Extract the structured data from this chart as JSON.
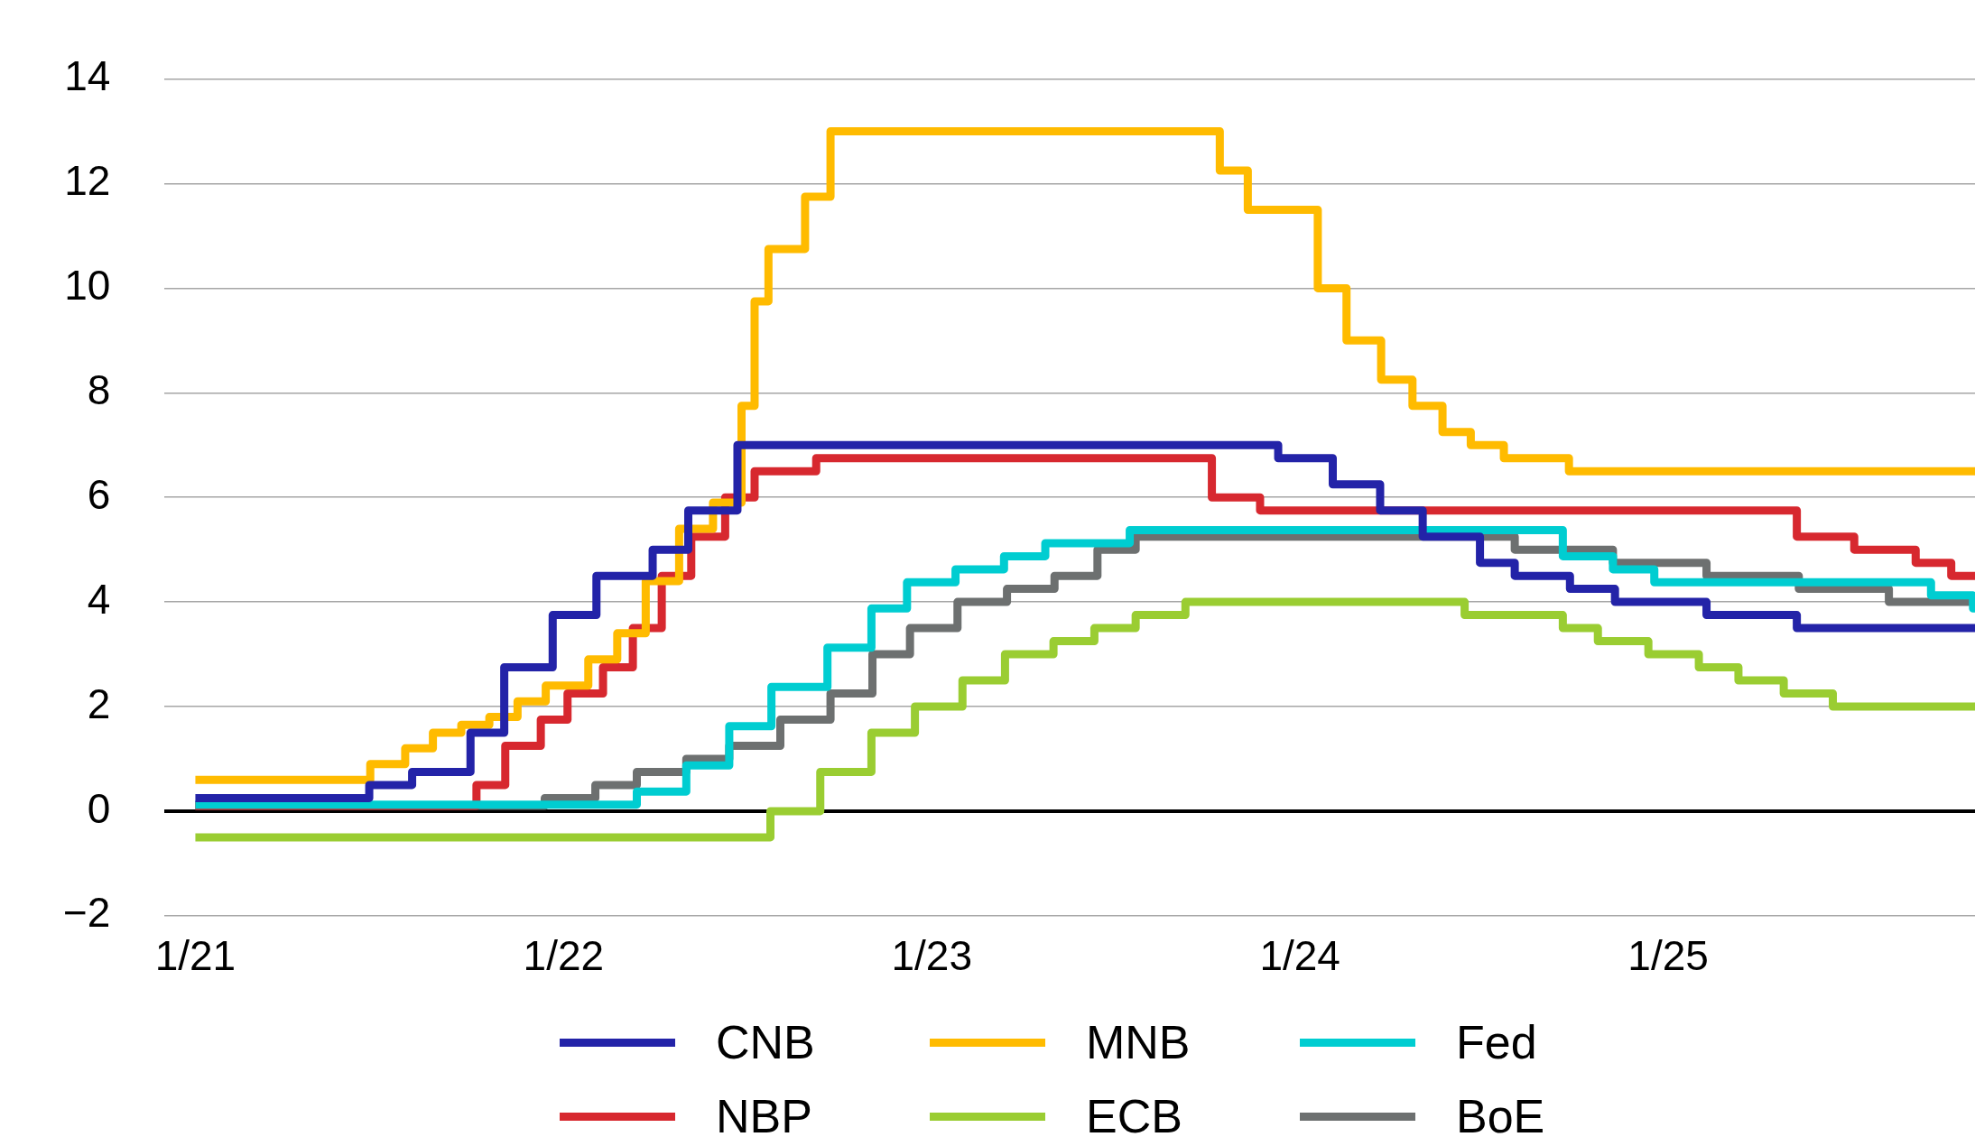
{
  "chart_data": {
    "type": "step",
    "xlim": [
      "2020-12",
      "2025-11"
    ],
    "ylim": [
      -2,
      14
    ],
    "yticks": [
      -2,
      0,
      2,
      4,
      6,
      8,
      10,
      12,
      14
    ],
    "xticks": [
      {
        "value": "2021-01",
        "label": "1/21"
      },
      {
        "value": "2022-01",
        "label": "1/22"
      },
      {
        "value": "2023-01",
        "label": "1/23"
      },
      {
        "value": "2024-01",
        "label": "1/24"
      },
      {
        "value": "2025-01",
        "label": "1/25"
      }
    ],
    "grid": "y",
    "legend": "bottom",
    "marker": "none",
    "line_style": "solid",
    "series": [
      {
        "name": "CNB",
        "color": "#2323a8",
        "x": [
          "2021-01-01",
          "2021-06-21",
          "2021-08-03",
          "2021-09-30",
          "2021-11-03",
          "2021-12-21",
          "2022-02-03",
          "2022-03-29",
          "2022-05-03",
          "2022-06-21",
          "2023-12-10",
          "2024-02-03",
          "2024-03-20",
          "2024-05-01",
          "2024-06-27",
          "2024-08-01",
          "2024-09-25",
          "2024-11-09",
          "2025-02-08",
          "2025-05-07",
          "2025-11-01"
        ],
        "values": [
          0.25,
          0.5,
          0.75,
          1.5,
          2.75,
          3.75,
          4.5,
          5,
          5.75,
          7,
          6.75,
          6.25,
          5.75,
          5.25,
          4.75,
          4.5,
          4.25,
          4,
          3.75,
          3.5,
          3.5
        ]
      },
      {
        "name": "MNB",
        "color": "#ffbb00",
        "x": [
          "2021-01-01",
          "2021-06-22",
          "2021-07-27",
          "2021-08-24",
          "2021-09-21",
          "2021-10-19",
          "2021-11-16",
          "2021-12-14",
          "2022-01-26",
          "2022-02-22",
          "2022-03-22",
          "2022-04-24",
          "2022-05-28",
          "2022-06-25",
          "2022-07-08",
          "2022-07-22",
          "2022-08-28",
          "2022-09-22",
          "2023-10-13",
          "2023-11-10",
          "2024-01-19",
          "2024-02-16",
          "2024-03-21",
          "2024-04-21",
          "2024-05-21",
          "2024-06-18",
          "2024-07-21",
          "2024-09-24",
          "2025-11-01"
        ],
        "values": [
          0.6,
          0.9,
          1.2,
          1.5,
          1.65,
          1.8,
          2.1,
          2.4,
          2.9,
          3.4,
          4.4,
          5.4,
          5.9,
          7.75,
          9.75,
          10.75,
          11.75,
          13,
          12.25,
          11.5,
          10,
          9,
          8.25,
          7.75,
          7.25,
          7,
          6.75,
          6.5,
          6.5
        ]
      },
      {
        "name": "Fed",
        "color": "#00cdd1",
        "x": [
          "2021-01-01",
          "2022-03-13",
          "2022-05-01",
          "2022-06-13",
          "2022-07-25",
          "2022-09-19",
          "2022-11-02",
          "2022-12-07",
          "2023-01-25",
          "2023-03-12",
          "2023-04-22",
          "2023-07-15",
          "2024-09-18",
          "2024-11-07",
          "2024-12-18",
          "2025-09-18",
          "2025-10-30",
          "2025-11-01"
        ],
        "values": [
          0.125,
          0.375,
          0.875,
          1.625,
          2.375,
          3.125,
          3.875,
          4.375,
          4.625,
          4.875,
          5.125,
          5.375,
          4.875,
          4.625,
          4.375,
          4.125,
          3.875,
          3.875
        ]
      },
      {
        "name": "NBP",
        "color": "#d7282f",
        "x": [
          "2021-01-01",
          "2021-10-06",
          "2021-11-04",
          "2021-12-09",
          "2022-01-05",
          "2022-02-09",
          "2022-03-09",
          "2022-04-07",
          "2022-05-06",
          "2022-06-09",
          "2022-07-08",
          "2022-09-08",
          "2023-10-05",
          "2023-11-22",
          "2025-05-07",
          "2025-07-03",
          "2025-09-03",
          "2025-10-08",
          "2025-11-01"
        ],
        "values": [
          0.1,
          0.5,
          1.25,
          1.75,
          2.25,
          2.75,
          3.5,
          4.5,
          5.25,
          6,
          6.5,
          6.75,
          6,
          5.75,
          5.25,
          5,
          4.75,
          4.5,
          4.5
        ]
      },
      {
        "name": "ECB",
        "color": "#9acd32",
        "x": [
          "2021-01-01",
          "2022-07-24",
          "2022-09-12",
          "2022-11-02",
          "2022-12-15",
          "2023-02-01",
          "2023-03-13",
          "2023-04-30",
          "2023-06-10",
          "2023-07-21",
          "2023-09-09",
          "2024-06-12",
          "2024-09-18",
          "2024-10-23",
          "2024-12-12",
          "2025-02-01",
          "2025-03-10",
          "2025-04-24",
          "2025-06-12",
          "2025-11-01"
        ],
        "values": [
          -0.5,
          0,
          0.75,
          1.5,
          2,
          2.5,
          3,
          3.25,
          3.5,
          3.75,
          4,
          3.75,
          3.5,
          3.25,
          3,
          2.75,
          2.5,
          2.25,
          2,
          2
        ]
      },
      {
        "name": "BoE",
        "color": "#6d7070",
        "x": [
          "2021-01-01",
          "2021-12-13",
          "2022-02-02",
          "2022-03-13",
          "2022-05-01",
          "2022-06-13",
          "2022-08-03",
          "2022-09-22",
          "2022-11-03",
          "2022-12-10",
          "2023-01-27",
          "2023-03-15",
          "2023-05-01",
          "2023-06-13",
          "2023-07-21",
          "2024-08-01",
          "2024-11-07",
          "2025-02-08",
          "2025-05-09",
          "2025-08-07",
          "2025-11-01"
        ],
        "values": [
          0.1,
          0.25,
          0.5,
          0.75,
          1,
          1.25,
          1.75,
          2.25,
          3,
          3.5,
          4,
          4.25,
          4.5,
          5,
          5.25,
          5,
          4.75,
          4.5,
          4.25,
          4,
          4
        ]
      }
    ]
  }
}
